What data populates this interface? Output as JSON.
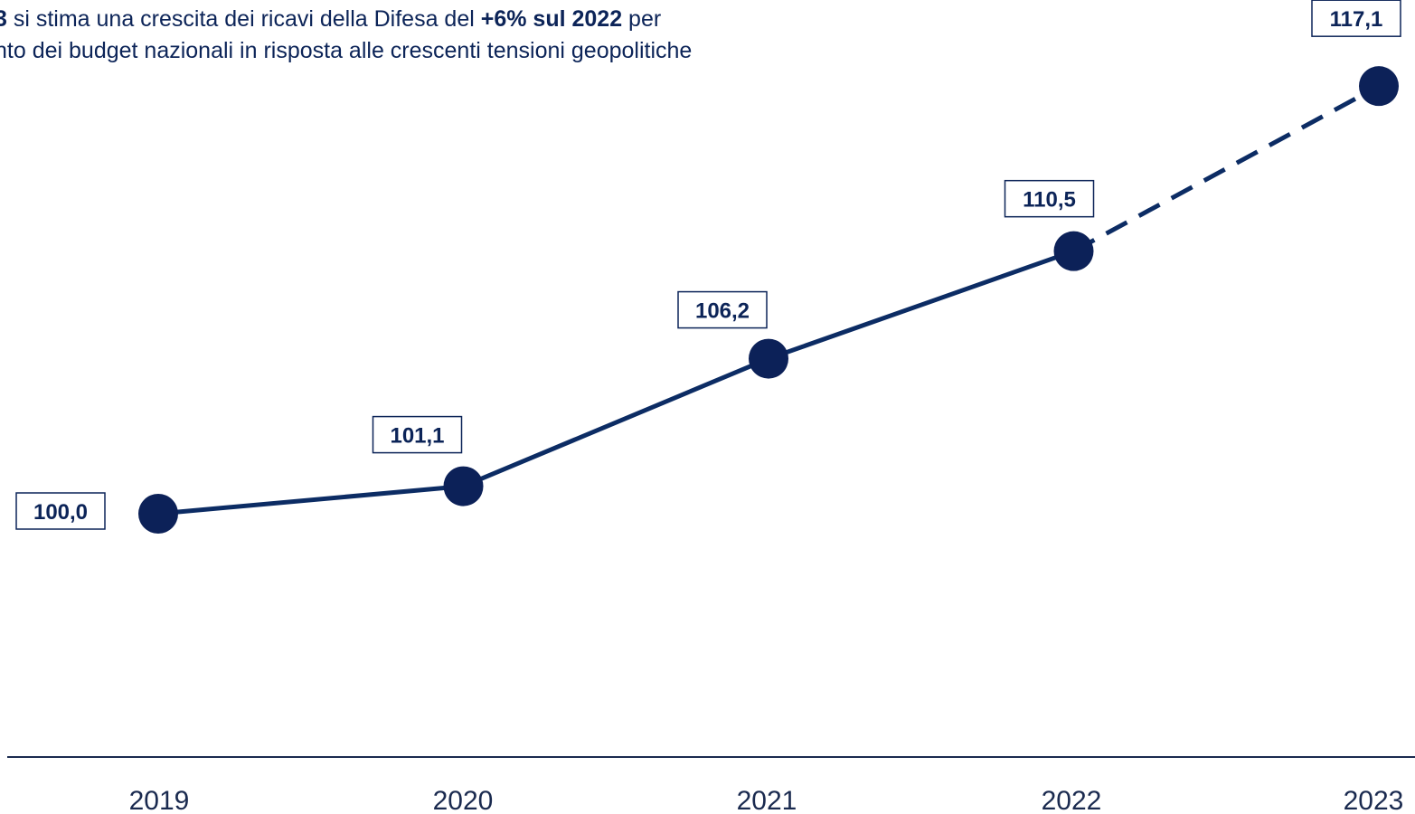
{
  "headline": {
    "line1_part1": "3",
    "line1_part2": " si stima una crescita dei ricavi della Difesa del ",
    "line1_part3": "+6% sul 2022",
    "line1_part4": " per",
    "line2": "nto dei budget nazionali in risposta alle crescenti tensioni geopolitiche"
  },
  "colors": {
    "line": "#0c2c64",
    "marker": "#0c2158",
    "axis": "#1a2a4f",
    "label_border": "#0c2458"
  },
  "chart_data": {
    "type": "line",
    "categories": [
      "2019",
      "2020",
      "2021",
      "2022",
      "2023"
    ],
    "values": [
      100.0,
      101.1,
      106.2,
      110.5,
      117.1
    ],
    "data_labels": [
      "100,0",
      "101,1",
      "106,2",
      "110,5",
      "117,1"
    ],
    "estimated_from_index": 3,
    "grid": false,
    "legend": "none"
  }
}
